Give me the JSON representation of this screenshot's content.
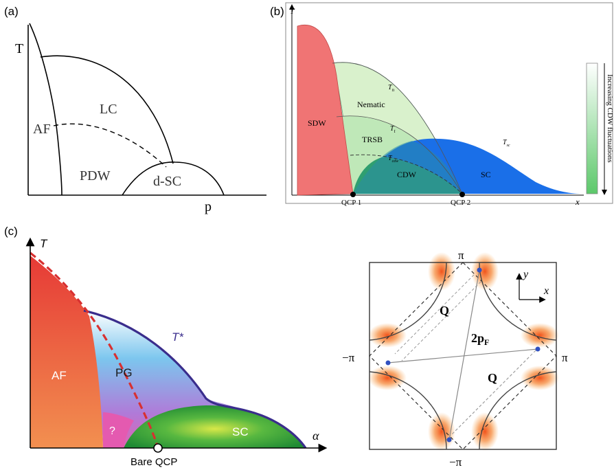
{
  "panel_a": {
    "tag": "(a)",
    "t_axis": "T",
    "p_axis": "p",
    "af": "AF",
    "lc": "LC",
    "pdw": "PDW",
    "dsc": "d-SC"
  },
  "panel_b": {
    "tag": "(b)",
    "t_axis": "T",
    "x_axis": "x",
    "sdw": "SDW",
    "nematic": "Nematic",
    "trsb": "TRSB",
    "cdw": "CDW",
    "sc": "SC",
    "tn": "T",
    "tn_sub": "n",
    "tt": "T",
    "tt_sub": "t",
    "tcdw": "T",
    "tcdw_sub": "cdw",
    "tsc": "T",
    "tsc_sub": "sc",
    "qcp1": "QCP 1",
    "qcp2": "QCP 2",
    "side_label": "Increasing CDW fluctuations"
  },
  "panel_c": {
    "tag": "(c)",
    "t_axis": "T",
    "alpha_axis": "α",
    "af": "AF",
    "pg": "PG",
    "q": "?",
    "sc": "SC",
    "tstar": "T*",
    "bare_qcp": "Bare QCP"
  },
  "panel_d": {
    "pi_top": "π",
    "pi_bottom": "−π",
    "pi_left": "−π",
    "pi_right": "π",
    "q_upper": "Q",
    "q_lower": "Q",
    "two_pf": "2p",
    "two_pf_sub": "F",
    "y_label": "y",
    "x_label": "x"
  },
  "colors": {
    "sdw": "#f07878",
    "nematic": "#d8f0cc",
    "sc_b": "#1a6fe8",
    "cdw": "#2ea36a",
    "af_c_top": "#e8403a",
    "af_c_bottom": "#f08a50",
    "pg_top": "#7fc8ee",
    "pg_bottom": "#d070c0",
    "sc_c": "#2a9a3a",
    "tstar_line": "#3a2d8c",
    "dashed_red": "#d83030",
    "hotspot": "#f07020"
  }
}
